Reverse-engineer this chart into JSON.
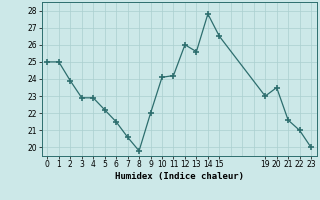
{
  "x": [
    0,
    1,
    2,
    3,
    4,
    5,
    6,
    7,
    8,
    9,
    10,
    11,
    12,
    13,
    14,
    15,
    19,
    20,
    21,
    22,
    23
  ],
  "y": [
    25.0,
    25.0,
    23.9,
    22.9,
    22.9,
    22.2,
    21.5,
    20.6,
    19.8,
    22.0,
    24.1,
    24.2,
    26.0,
    25.6,
    27.8,
    26.5,
    23.0,
    23.5,
    21.6,
    21.0,
    20.0
  ],
  "line_color": "#2d6e6e",
  "bg_color": "#cce8e8",
  "grid_major_color": "#aacfcf",
  "grid_minor_color": "#bddede",
  "ylabel_ticks": [
    20,
    21,
    22,
    23,
    24,
    25,
    26,
    27,
    28
  ],
  "xlabel_tick_positions": [
    0,
    1,
    2,
    3,
    4,
    5,
    6,
    7,
    8,
    9,
    10,
    11,
    12,
    13,
    14,
    15,
    19,
    20,
    21,
    22,
    23
  ],
  "xlabel_labels": [
    "0",
    "1",
    "2",
    "3",
    "4",
    "5",
    "6",
    "7",
    "8",
    "9",
    "10",
    "11",
    "12",
    "13",
    "14",
    "15",
    "19",
    "20",
    "21",
    "22",
    "23"
  ],
  "xlabel": "Humidex (Indice chaleur)",
  "ylim": [
    19.5,
    28.5
  ],
  "xlim": [
    -0.5,
    23.5
  ]
}
